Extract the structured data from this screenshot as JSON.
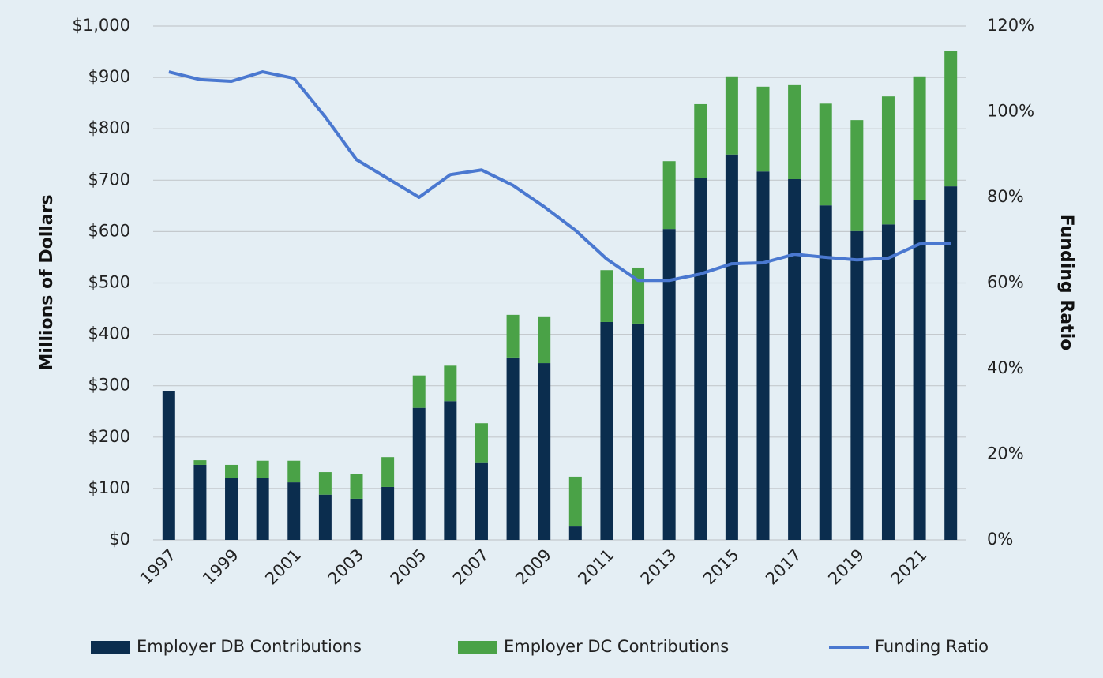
{
  "chart_data": {
    "type": "bar",
    "categories": [
      "1997",
      null,
      "1999",
      null,
      "2001",
      null,
      "2003",
      null,
      "2005",
      null,
      "2007",
      null,
      "2009",
      null,
      "2011",
      null,
      "2013",
      null,
      "2015",
      null,
      "2017",
      null,
      "2019",
      null,
      "2021",
      null
    ],
    "series": [
      {
        "name": "Employer DB Contributions",
        "color": "#0b2d4e",
        "values": [
          289,
          146,
          121,
          121,
          112,
          88,
          80,
          103,
          257,
          270,
          151,
          355,
          344,
          26,
          424,
          421,
          605,
          705,
          750,
          717,
          702,
          651,
          601,
          614,
          661,
          688
        ]
      },
      {
        "name": "Employer DC Contributions",
        "color": "#4aa247",
        "values": [
          0,
          9,
          25,
          33,
          42,
          44,
          49,
          58,
          63,
          69,
          76,
          83,
          91,
          97,
          101,
          109,
          132,
          143,
          152,
          165,
          183,
          198,
          216,
          249,
          241,
          263
        ]
      },
      {
        "name": "Funding Ratio",
        "color": "#4a78d0",
        "axis": "y2",
        "values": [
          109.3,
          107.5,
          107.1,
          109.3,
          107.8,
          98.8,
          88.8,
          84.4,
          80,
          85.3,
          86.4,
          82.8,
          77.8,
          72.3,
          65.6,
          60.6,
          60.6,
          62.1,
          64.5,
          64.7,
          66.7,
          66,
          65.4,
          65.8,
          69.1,
          69.3
        ]
      }
    ],
    "y_label": "Millions of Dollars",
    "y2_label": "Funding Ratio",
    "ylim": [
      0,
      1000
    ],
    "yticks": [
      {
        "value": 0,
        "label": "$0"
      },
      {
        "value": 100,
        "label": "$100"
      },
      {
        "value": 200,
        "label": "$200"
      },
      {
        "value": 300,
        "label": "$300"
      },
      {
        "value": 400,
        "label": "$400"
      },
      {
        "value": 500,
        "label": "$500"
      },
      {
        "value": 600,
        "label": "$600"
      },
      {
        "value": 700,
        "label": "$700"
      },
      {
        "value": 800,
        "label": "$800"
      },
      {
        "value": 900,
        "label": "$900"
      },
      {
        "value": 1000,
        "label": "$1,000"
      }
    ],
    "y2lim": [
      0,
      120
    ],
    "y2ticks": [
      {
        "value": 0,
        "label": "0%"
      },
      {
        "value": 20,
        "label": "20%"
      },
      {
        "value": 40,
        "label": "40%"
      },
      {
        "value": 60,
        "label": "60%"
      },
      {
        "value": 80,
        "label": "80%"
      },
      {
        "value": 100,
        "label": "100%"
      },
      {
        "value": 120,
        "label": "120%"
      }
    ],
    "grid": true,
    "stacked": true,
    "legend": "bottom"
  }
}
